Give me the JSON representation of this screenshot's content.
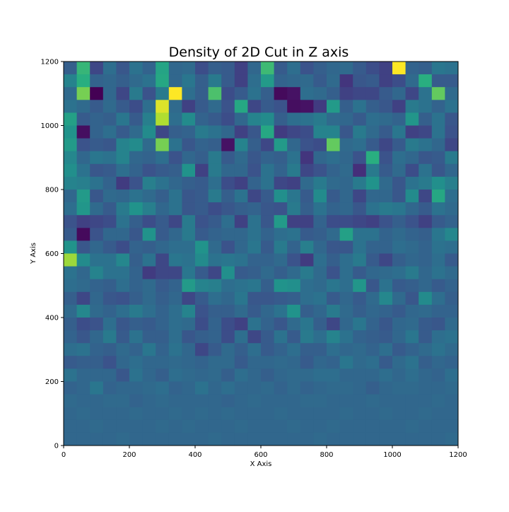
{
  "chart_data": {
    "type": "heatmap",
    "title": "Density of 2D Cut in Z axis",
    "xlabel": "X Axis",
    "ylabel": "Y Axis",
    "xlim": [
      0,
      1200
    ],
    "ylim": [
      0,
      1200
    ],
    "xticks": [
      0,
      200,
      400,
      600,
      800,
      1000,
      1200
    ],
    "yticks": [
      0,
      200,
      400,
      600,
      800,
      1000,
      1200
    ],
    "bins": 30,
    "bin_size": 40,
    "colormap": "viridis",
    "grid": false,
    "density_values": [
      [
        3.1,
        5.4,
        2.6,
        3.5,
        2.9,
        3.6,
        3.2,
        4.9,
        3.3,
        3.4,
        2.7,
        3.1,
        3.0,
        2.5,
        3.3,
        5.5,
        3.0,
        3.5,
        2.8,
        3.1,
        3.3,
        3.4,
        3.0,
        2.7,
        2.5,
        7.5,
        3.2,
        3.1,
        3.7,
        3.6
      ],
      [
        4.0,
        5.2,
        3.2,
        3.3,
        3.1,
        3.4,
        3.6,
        5.0,
        3.3,
        3.7,
        3.1,
        3.8,
        3.0,
        2.5,
        3.5,
        4.6,
        3.2,
        3.3,
        3.4,
        3.0,
        3.4,
        2.3,
        2.9,
        3.0,
        2.5,
        2.7,
        3.4,
        5.2,
        3.0,
        3.0
      ],
      [
        3.4,
        6.2,
        1.2,
        3.3,
        2.6,
        3.8,
        2.8,
        3.8,
        7.5,
        3.5,
        3.1,
        5.7,
        2.7,
        3.0,
        3.6,
        3.1,
        1.4,
        1.6,
        3.5,
        3.4,
        3.1,
        2.5,
        2.6,
        2.6,
        3.0,
        3.3,
        2.6,
        3.6,
        6.0,
        3.4
      ],
      [
        3.6,
        3.4,
        3.0,
        3.4,
        3.0,
        2.7,
        3.5,
        7.2,
        3.4,
        2.5,
        3.0,
        3.4,
        2.8,
        5.0,
        2.6,
        3.0,
        2.8,
        1.5,
        1.6,
        2.4,
        4.6,
        3.1,
        3.6,
        3.1,
        2.9,
        2.5,
        3.8,
        3.6,
        3.2,
        3.6
      ],
      [
        4.8,
        3.0,
        3.2,
        3.1,
        3.7,
        3.0,
        3.9,
        6.8,
        3.5,
        4.2,
        3.2,
        3.0,
        2.7,
        3.3,
        4.0,
        4.2,
        3.1,
        3.5,
        3.6,
        3.8,
        3.4,
        3.3,
        3.0,
        3.5,
        3.4,
        3.2,
        4.5,
        3.1,
        3.6,
        2.9
      ],
      [
        4.4,
        1.5,
        3.2,
        3.5,
        3.0,
        3.4,
        4.2,
        2.6,
        3.1,
        3.2,
        3.8,
        3.6,
        3.3,
        2.5,
        2.9,
        5.0,
        2.4,
        2.6,
        2.7,
        4.0,
        4.0,
        2.9,
        3.8,
        3.4,
        3.0,
        3.7,
        2.5,
        2.6,
        3.6,
        2.8
      ],
      [
        4.6,
        2.8,
        3.0,
        2.9,
        4.0,
        4.2,
        3.4,
        6.2,
        3.6,
        2.9,
        3.2,
        3.1,
        1.6,
        4.0,
        3.1,
        2.6,
        4.6,
        3.3,
        2.8,
        2.7,
        6.0,
        3.4,
        3.5,
        3.0,
        2.6,
        3.0,
        3.8,
        3.6,
        3.3,
        2.6
      ],
      [
        4.1,
        3.3,
        3.7,
        3.6,
        4.0,
        3.3,
        3.2,
        3.5,
        2.8,
        3.3,
        3.1,
        3.8,
        3.0,
        3.4,
        2.9,
        3.2,
        3.1,
        3.6,
        2.3,
        3.3,
        3.5,
        3.3,
        2.8,
        5.2,
        2.8,
        3.5,
        3.3,
        2.9,
        3.0,
        3.8
      ],
      [
        4.3,
        3.6,
        2.9,
        3.0,
        3.5,
        3.2,
        2.8,
        3.0,
        3.1,
        4.4,
        2.5,
        3.8,
        3.3,
        3.3,
        2.8,
        3.6,
        3.2,
        3.8,
        2.6,
        2.8,
        3.2,
        3.4,
        2.2,
        3.8,
        3.0,
        3.4,
        2.7,
        3.6,
        2.9,
        3.3
      ],
      [
        4.0,
        3.9,
        3.6,
        3.2,
        2.4,
        2.8,
        3.9,
        3.6,
        3.3,
        3.1,
        3.0,
        3.5,
        2.7,
        2.5,
        3.2,
        3.6,
        2.6,
        2.5,
        3.4,
        3.8,
        3.4,
        3.3,
        3.8,
        4.4,
        3.4,
        2.9,
        3.6,
        3.8,
        4.3,
        3.9
      ],
      [
        3.3,
        4.6,
        2.9,
        3.4,
        3.3,
        3.6,
        3.4,
        3.1,
        3.6,
        2.9,
        3.0,
        3.8,
        3.1,
        3.6,
        2.6,
        3.0,
        4.3,
        3.7,
        3.0,
        4.2,
        3.0,
        3.3,
        2.6,
        3.3,
        3.3,
        2.9,
        4.2,
        2.6,
        5.0,
        3.5
      ],
      [
        3.5,
        4.5,
        3.4,
        3.0,
        3.8,
        4.4,
        3.9,
        3.3,
        3.6,
        2.9,
        3.0,
        2.7,
        2.9,
        3.1,
        3.2,
        2.9,
        2.8,
        3.8,
        3.1,
        3.6,
        3.2,
        3.3,
        2.9,
        3.6,
        3.8,
        3.7,
        3.3,
        3.0,
        3.6,
        3.4
      ],
      [
        2.8,
        2.5,
        2.6,
        2.7,
        3.6,
        3.1,
        2.7,
        3.0,
        2.6,
        3.8,
        2.8,
        3.0,
        3.5,
        2.5,
        3.6,
        2.9,
        4.6,
        2.5,
        2.5,
        3.2,
        2.7,
        2.7,
        2.6,
        2.5,
        2.8,
        3.1,
        2.8,
        2.5,
        3.0,
        3.2
      ],
      [
        3.0,
        1.4,
        2.8,
        3.3,
        3.3,
        2.9,
        4.4,
        3.0,
        3.3,
        3.8,
        3.0,
        3.2,
        3.3,
        3.3,
        3.6,
        3.2,
        3.5,
        3.6,
        3.0,
        3.1,
        3.4,
        4.8,
        3.6,
        3.6,
        3.2,
        3.4,
        3.2,
        3.1,
        3.7,
        4.1
      ],
      [
        4.4,
        2.9,
        3.3,
        3.0,
        2.7,
        3.2,
        3.1,
        3.3,
        3.5,
        3.5,
        4.4,
        3.4,
        2.8,
        3.3,
        3.7,
        3.0,
        3.8,
        3.2,
        3.9,
        3.3,
        2.9,
        2.9,
        3.6,
        3.2,
        3.2,
        3.5,
        3.4,
        3.2,
        3.6,
        3.5
      ],
      [
        6.6,
        4.2,
        3.6,
        3.6,
        4.1,
        3.1,
        3.6,
        2.6,
        3.7,
        3.6,
        4.2,
        3.6,
        3.7,
        3.6,
        3.2,
        3.2,
        3.4,
        2.8,
        2.4,
        3.5,
        3.1,
        3.5,
        3.8,
        3.0,
        2.6,
        3.1,
        3.3,
        3.2,
        3.5,
        3.0
      ],
      [
        3.6,
        3.3,
        4.0,
        3.6,
        3.6,
        3.2,
        2.4,
        2.6,
        2.6,
        3.7,
        3.0,
        2.6,
        4.3,
        3.0,
        3.1,
        3.4,
        3.1,
        3.4,
        3.8,
        3.4,
        2.8,
        3.5,
        3.0,
        3.3,
        3.4,
        3.5,
        3.8,
        3.3,
        3.6,
        3.4
      ],
      [
        3.5,
        3.4,
        3.2,
        3.1,
        3.5,
        3.2,
        3.4,
        3.0,
        3.2,
        4.6,
        4.0,
        3.9,
        3.5,
        3.6,
        3.7,
        3.1,
        4.4,
        4.3,
        3.5,
        3.4,
        3.7,
        3.5,
        4.5,
        2.9,
        3.6,
        3.0,
        3.1,
        3.3,
        3.0,
        3.2
      ],
      [
        3.1,
        2.6,
        3.3,
        2.9,
        2.8,
        3.1,
        3.4,
        3.1,
        3.3,
        2.6,
        3.0,
        3.5,
        3.3,
        3.7,
        2.9,
        2.9,
        3.0,
        3.1,
        3.5,
        3.6,
        3.0,
        3.3,
        3.0,
        3.4,
        4.1,
        3.4,
        2.9,
        4.2,
        3.5,
        3.1
      ],
      [
        3.4,
        4.1,
        3.4,
        3.2,
        3.5,
        3.8,
        3.5,
        3.2,
        3.5,
        4.0,
        2.8,
        3.1,
        3.1,
        3.4,
        3.0,
        3.3,
        3.6,
        4.4,
        3.1,
        3.3,
        3.8,
        3.4,
        3.1,
        3.3,
        3.2,
        3.0,
        3.3,
        3.4,
        3.2,
        3.2
      ],
      [
        3.1,
        2.7,
        2.8,
        3.5,
        2.9,
        3.1,
        3.0,
        3.2,
        3.5,
        3.4,
        2.7,
        3.2,
        2.7,
        2.5,
        3.6,
        3.2,
        2.9,
        3.4,
        3.7,
        3.1,
        2.6,
        3.3,
        3.7,
        3.2,
        2.9,
        3.3,
        3.4,
        3.0,
        2.9,
        3.4
      ],
      [
        3.2,
        2.9,
        3.3,
        3.8,
        3.0,
        3.6,
        3.1,
        3.1,
        3.5,
        2.9,
        3.1,
        3.2,
        2.7,
        3.5,
        2.6,
        3.0,
        3.6,
        3.0,
        3.8,
        3.5,
        4.0,
        3.6,
        3.2,
        3.1,
        3.0,
        3.3,
        3.7,
        3.0,
        3.5,
        3.6
      ],
      [
        3.5,
        3.6,
        3.2,
        3.1,
        3.4,
        3.2,
        3.7,
        3.2,
        3.6,
        3.3,
        2.6,
        3.0,
        3.4,
        3.1,
        3.5,
        3.0,
        3.2,
        3.5,
        3.1,
        3.1,
        3.5,
        3.3,
        3.4,
        3.2,
        3.5,
        3.0,
        3.2,
        3.4,
        3.6,
        3.4
      ],
      [
        3.0,
        3.1,
        3.1,
        2.8,
        3.3,
        3.5,
        3.3,
        3.3,
        3.4,
        3.3,
        3.2,
        3.4,
        3.4,
        3.0,
        3.3,
        3.3,
        3.4,
        3.3,
        3.0,
        3.3,
        3.2,
        3.7,
        3.4,
        3.5,
        3.0,
        3.4,
        3.6,
        3.1,
        3.3,
        3.2
      ],
      [
        3.6,
        3.3,
        3.3,
        3.3,
        2.9,
        3.6,
        3.3,
        3.1,
        3.5,
        3.4,
        3.3,
        3.4,
        3.1,
        3.5,
        3.3,
        3.1,
        3.3,
        3.4,
        3.4,
        3.5,
        3.5,
        3.3,
        3.3,
        3.3,
        3.5,
        3.3,
        3.5,
        3.3,
        3.2,
        3.5
      ],
      [
        3.2,
        3.3,
        3.7,
        3.2,
        3.3,
        3.3,
        3.4,
        3.5,
        3.2,
        3.3,
        3.6,
        3.3,
        3.5,
        3.3,
        3.3,
        3.4,
        3.2,
        3.4,
        3.2,
        3.3,
        3.4,
        3.4,
        3.3,
        3.1,
        3.3,
        3.4,
        3.4,
        3.3,
        3.3,
        3.4
      ],
      [
        3.4,
        3.3,
        3.3,
        3.4,
        3.4,
        3.2,
        3.3,
        3.4,
        3.3,
        3.3,
        3.3,
        3.3,
        3.2,
        3.3,
        3.4,
        3.3,
        3.3,
        3.3,
        3.4,
        3.4,
        3.3,
        3.3,
        3.3,
        3.4,
        3.3,
        3.3,
        3.3,
        3.3,
        3.4,
        3.3
      ],
      [
        3.3,
        3.4,
        3.3,
        3.3,
        3.3,
        3.4,
        3.3,
        3.3,
        3.4,
        3.3,
        3.4,
        3.3,
        3.4,
        3.3,
        3.3,
        3.3,
        3.4,
        3.3,
        3.3,
        3.3,
        3.3,
        3.4,
        3.3,
        3.3,
        3.4,
        3.3,
        3.3,
        3.4,
        3.3,
        3.3
      ],
      [
        3.3,
        3.3,
        3.4,
        3.3,
        3.3,
        3.3,
        3.3,
        3.4,
        3.3,
        3.4,
        3.3,
        3.3,
        3.3,
        3.4,
        3.3,
        3.3,
        3.3,
        3.4,
        3.3,
        3.3,
        3.4,
        3.3,
        3.3,
        3.3,
        3.3,
        3.3,
        3.4,
        3.3,
        3.3,
        3.3
      ],
      [
        3.3,
        3.3,
        3.3,
        3.3,
        3.4,
        3.3,
        3.3,
        3.3,
        3.3,
        3.3,
        3.3,
        3.4,
        3.3,
        3.3,
        3.3,
        3.3,
        3.3,
        3.3,
        3.3,
        3.4,
        3.3,
        3.3,
        3.3,
        3.3,
        3.3,
        3.3,
        3.3,
        3.3,
        3.3,
        3.4
      ]
    ]
  }
}
